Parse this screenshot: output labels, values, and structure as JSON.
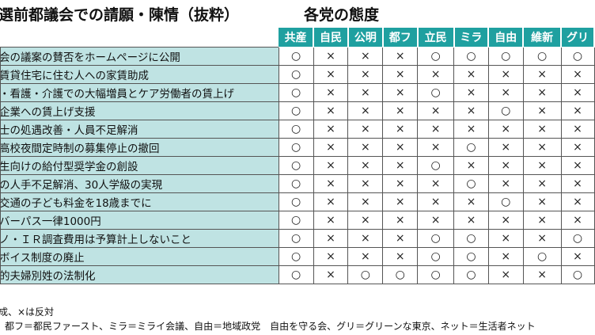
{
  "title": "選前都議会での請願・陳情（抜粋）",
  "subtitle": "各党の態度",
  "parties": [
    "共産",
    "自民",
    "公明",
    "都フ",
    "立民",
    "ミラ",
    "自由",
    "維新",
    "グリ"
  ],
  "rows": [
    {
      "item": "会の議案の賛否をホームページに公開",
      "marks": [
        "○",
        "×",
        "×",
        "×",
        "○",
        "○",
        "○",
        "○",
        "○"
      ]
    },
    {
      "item": "賃貸住宅に住む人への家賃助成",
      "marks": [
        "○",
        "×",
        "×",
        "×",
        "×",
        "×",
        "×",
        "×",
        "×"
      ]
    },
    {
      "item": "・看護・介護での大幅増員とケア労働者の賃上げ",
      "marks": [
        "○",
        "×",
        "×",
        "×",
        "○",
        "×",
        "×",
        "×",
        "×"
      ]
    },
    {
      "item": "企業への賃上げ支援",
      "marks": [
        "○",
        "×",
        "×",
        "×",
        "×",
        "×",
        "○",
        "×",
        "×"
      ]
    },
    {
      "item": "士の処遇改善・人員不足解消",
      "marks": [
        "○",
        "×",
        "×",
        "×",
        "×",
        "×",
        "×",
        "×",
        "×"
      ]
    },
    {
      "item": "高校夜間定時制の募集停止の撤回",
      "marks": [
        "○",
        "×",
        "×",
        "×",
        "×",
        "○",
        "×",
        "×",
        "×"
      ]
    },
    {
      "item": "生向けの給付型奨学金の創設",
      "marks": [
        "○",
        "×",
        "×",
        "×",
        "○",
        "×",
        "×",
        "×",
        "×"
      ]
    },
    {
      "item": "の人手不足解消、30人学級の実現",
      "marks": [
        "○",
        "×",
        "×",
        "×",
        "×",
        "○",
        "×",
        "×",
        "×"
      ]
    },
    {
      "item": "交通の子ども料金を18歳までに",
      "marks": [
        "○",
        "×",
        "×",
        "×",
        "×",
        "×",
        "○",
        "×",
        "×"
      ]
    },
    {
      "item": "バーパス一律1000円",
      "marks": [
        "○",
        "×",
        "×",
        "×",
        "×",
        "×",
        "×",
        "×",
        "×"
      ]
    },
    {
      "item": "ノ・ＩＲ調査費用は予算計上しないこと",
      "marks": [
        "○",
        "×",
        "×",
        "×",
        "○",
        "○",
        "×",
        "×",
        "○"
      ]
    },
    {
      "item": "ボイス制度の廃止",
      "marks": [
        "○",
        "×",
        "×",
        "×",
        "○",
        "○",
        "×",
        "○",
        "×"
      ]
    },
    {
      "item": "的夫婦別姓の法制化",
      "marks": [
        "○",
        "×",
        "○",
        "○",
        "○",
        "○",
        "×",
        "×",
        "○"
      ]
    }
  ],
  "legend": "成、×は反対",
  "abbrev_note": "都フ＝都民ファースト、ミラ＝ミライ会議、自由＝地域政党　自由を守る会、グリ＝グリーンな東京、ネット＝生活者ネット"
}
